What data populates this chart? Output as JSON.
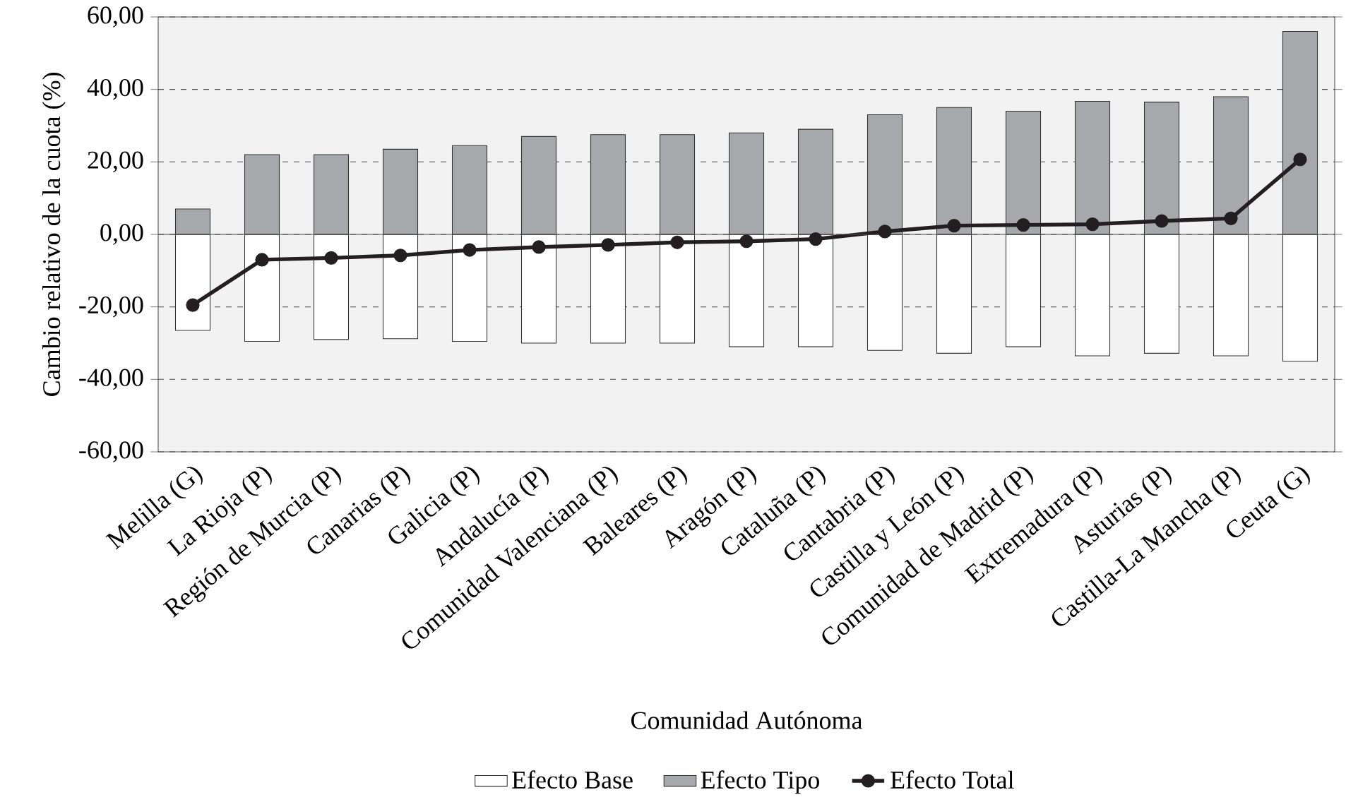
{
  "chart_data": {
    "type": "bar",
    "stacked": true,
    "xlabel": "Comunidad Autónoma",
    "ylabel": "Cambio relativo de la cuota (%)",
    "categories": [
      "Melilla (G)",
      "La Rioja (P)",
      "Región de Murcia (P)",
      "Canarias (P)",
      "Galicia (P)",
      "Andalucía (P)",
      "Comunidad Valenciana (P)",
      "Baleares (P)",
      "Aragón (P)",
      "Cataluña (P)",
      "Cantabria (P)",
      "Castilla y León (P)",
      "Comunidad de Madrid (P)",
      "Extremadura (P)",
      "Asturias (P)",
      "Castilla-La Mancha (P)",
      "Ceuta (G)"
    ],
    "series": [
      {
        "name": "Efecto Base",
        "color": "#ffffff",
        "values": [
          -26.5,
          -29.5,
          -29,
          -28.8,
          -29.5,
          -30,
          -30,
          -30,
          -31,
          -31,
          -32,
          -32.8,
          -31,
          -33.5,
          -32.8,
          -33.5,
          -35
        ]
      },
      {
        "name": "Efecto Tipo",
        "color": "#a7a8ab",
        "values": [
          7,
          22,
          22,
          23.5,
          24.5,
          27,
          27.5,
          27.5,
          28,
          29,
          33,
          35,
          34,
          36.7,
          36.5,
          38,
          56
        ]
      },
      {
        "name": "Efecto Total",
        "type": "line",
        "color": "#231f20",
        "marker": "circle",
        "values": [
          -19.5,
          -7,
          -6.5,
          -5.8,
          -4.3,
          -3.5,
          -2.9,
          -2.2,
          -1.9,
          -1.3,
          0.8,
          2.4,
          2.6,
          2.8,
          3.7,
          4.4,
          20.7
        ]
      }
    ],
    "ylim": [
      -60,
      60
    ],
    "yticks": [
      {
        "value": -60,
        "label": "-60,00"
      },
      {
        "value": -40,
        "label": "-40,00"
      },
      {
        "value": -20,
        "label": "-20,00"
      },
      {
        "value": 0,
        "label": "0,00"
      },
      {
        "value": 20,
        "label": "20,00"
      },
      {
        "value": 40,
        "label": "40,00"
      },
      {
        "value": 60,
        "label": "60,00"
      }
    ],
    "grid": "y",
    "legend": "bottom"
  }
}
